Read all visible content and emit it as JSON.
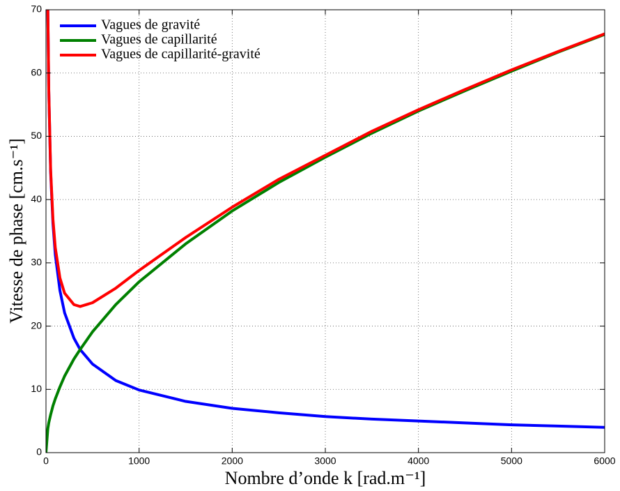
{
  "chart_data": {
    "type": "line",
    "xlabel": "Nombre d’onde k [rad.m⁻¹]",
    "ylabel": "Vitesse de phase [cm.s⁻¹]",
    "x": [
      0,
      20,
      30,
      50,
      75,
      100,
      150,
      200,
      300,
      367,
      500,
      750,
      1000,
      1500,
      2000,
      2500,
      3000,
      3500,
      4000,
      4500,
      5000,
      5500,
      6000
    ],
    "series": [
      {
        "name": "Vagues de gravité",
        "color": "#0000ff",
        "values": [
          null,
          70.0,
          57.2,
          44.3,
          36.2,
          31.3,
          25.6,
          22.1,
          18.1,
          16.3,
          14.0,
          11.4,
          9.9,
          8.1,
          7.0,
          6.3,
          5.7,
          5.3,
          5.0,
          4.7,
          4.4,
          4.2,
          4.0
        ]
      },
      {
        "name": "Vagues de capillarité",
        "color": "#008000",
        "values": [
          0,
          3.8,
          4.7,
          6.0,
          7.4,
          8.5,
          10.4,
          12.1,
          14.8,
          16.3,
          19.1,
          23.4,
          27.0,
          33.0,
          38.2,
          42.7,
          46.7,
          50.5,
          54.0,
          57.2,
          60.3,
          63.3,
          66.1
        ]
      },
      {
        "name": "Vagues de capillarité-gravité",
        "color": "#ff0000",
        "values": [
          null,
          70.1,
          57.4,
          44.7,
          36.9,
          32.4,
          27.6,
          25.2,
          23.4,
          23.1,
          23.7,
          26.0,
          28.8,
          34.0,
          38.8,
          43.2,
          47.0,
          50.8,
          54.2,
          57.4,
          60.5,
          63.4,
          66.2
        ]
      }
    ],
    "xlim": [
      0,
      6000
    ],
    "xticks": [
      0,
      1000,
      2000,
      3000,
      4000,
      5000,
      6000
    ],
    "ylim": [
      0,
      70
    ],
    "yticks": [
      0,
      10,
      20,
      30,
      40,
      50,
      60,
      70
    ],
    "grid": true,
    "legend": "upper left"
  }
}
